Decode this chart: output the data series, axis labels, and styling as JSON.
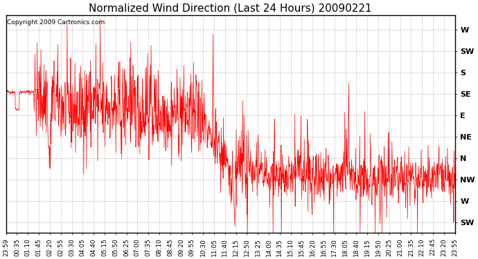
{
  "title": "Normalized Wind Direction (Last 24 Hours) 20090221",
  "copyright": "Copyright 2009 Cartronics.com",
  "line_color": "#ff0000",
  "background_color": "#ffffff",
  "grid_color": "#b0b0b0",
  "title_fontsize": 11,
  "ylabel_fontsize": 8,
  "xlabel_fontsize": 6.5,
  "ytick_labels": [
    "SW",
    "W",
    "NW",
    "N",
    "NE",
    "E",
    "SE",
    "S",
    "SW",
    "W"
  ],
  "ytick_values": [
    -1,
    0,
    1,
    2,
    3,
    4,
    5,
    6,
    7,
    8
  ],
  "ylim": [
    -1.5,
    8.7
  ],
  "xtick_labels": [
    "23:59",
    "00:35",
    "01:10",
    "01:45",
    "02:20",
    "02:55",
    "03:30",
    "04:05",
    "04:40",
    "05:15",
    "05:50",
    "06:25",
    "07:00",
    "07:35",
    "08:10",
    "08:45",
    "09:20",
    "09:55",
    "10:30",
    "11:05",
    "11:40",
    "12:15",
    "12:50",
    "13:25",
    "14:00",
    "14:35",
    "15:10",
    "15:45",
    "16:20",
    "16:55",
    "17:30",
    "18:05",
    "18:40",
    "19:15",
    "19:50",
    "20:25",
    "21:00",
    "21:35",
    "22:10",
    "22:45",
    "23:20",
    "23:55"
  ],
  "n_points": 1440,
  "seed": 42
}
